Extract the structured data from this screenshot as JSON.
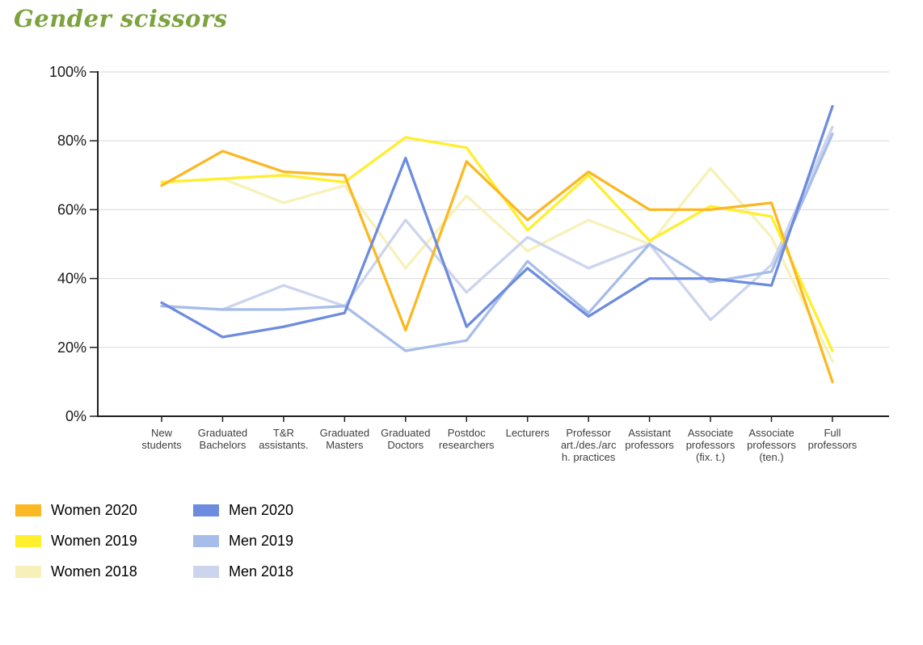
{
  "page": {
    "title": "Gender scissors",
    "title_color": "#7CA33E"
  },
  "chart_data": {
    "type": "line",
    "title": "Gender scissors",
    "categories": [
      "New\nstudents",
      "Graduated\nBachelors",
      "T&R\nassistants.",
      "Graduated\nMasters",
      "Graduated\nDoctors",
      "Postdoc\nresearchers",
      "Lecturers",
      "Professor\nart./des./arc\nh. practices",
      "Assistant\nprofessors",
      "Associate\nprofessors\n(fix. t.)",
      "Associate\nprofessors\n(ten.)",
      "Full\nprofessors"
    ],
    "series": [
      {
        "name": "Women 2020",
        "color": "#FBB823",
        "values": [
          67,
          77,
          71,
          70,
          25,
          74,
          57,
          71,
          60,
          60,
          62,
          10
        ]
      },
      {
        "name": "Women 2019",
        "color": "#FFEF2E",
        "values": [
          68,
          69,
          70,
          68,
          81,
          78,
          54,
          70,
          51,
          61,
          58,
          19
        ]
      },
      {
        "name": "Women 2018",
        "color": "#F7F1B9",
        "values": [
          68,
          69,
          62,
          67,
          43,
          64,
          48,
          57,
          50,
          72,
          52,
          16
        ]
      },
      {
        "name": "Men 2020",
        "color": "#6D8CDF",
        "values": [
          33,
          23,
          26,
          30,
          75,
          26,
          43,
          29,
          40,
          40,
          38,
          90
        ]
      },
      {
        "name": "Men 2019",
        "color": "#A7BDE9",
        "values": [
          32,
          31,
          31,
          32,
          19,
          22,
          45,
          30,
          50,
          39,
          42,
          82
        ]
      },
      {
        "name": "Men 2018",
        "color": "#CCD4EE",
        "values": [
          32,
          31,
          38,
          32,
          57,
          36,
          52,
          43,
          50,
          28,
          44,
          84
        ]
      }
    ],
    "xlabel": "",
    "ylabel": "",
    "ylim": [
      0,
      100
    ],
    "ytick_values": [
      0,
      20,
      40,
      60,
      80,
      100
    ],
    "yticks": [
      "0%",
      "20%",
      "40%",
      "60%",
      "80%",
      "100%"
    ],
    "grid": true,
    "legend_position": "bottom-left",
    "axis_color": "#1F1F1F",
    "gridline_color": "#DADADA"
  }
}
